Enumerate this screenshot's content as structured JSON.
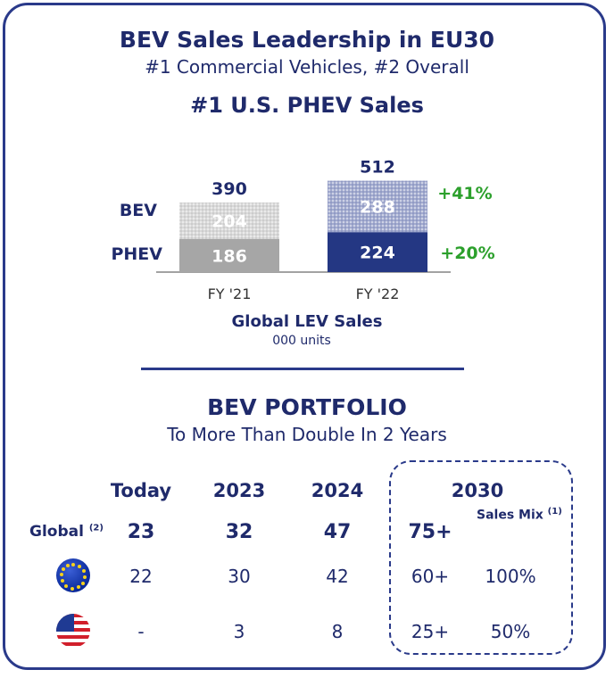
{
  "header": {
    "title": "BEV Sales Leadership in EU30",
    "subtitle": "#1 Commercial Vehicles, #2 Overall",
    "heading": "#1 U.S. PHEV Sales"
  },
  "chart_data": {
    "type": "bar",
    "stacked": true,
    "title": "Global LEV Sales",
    "subtitle": "000 units",
    "categories": [
      "FY '21",
      "FY '22"
    ],
    "totals": [
      390,
      512
    ],
    "series": [
      {
        "name": "PHEV",
        "values": [
          186,
          224
        ],
        "growth": "+20%"
      },
      {
        "name": "BEV",
        "values": [
          204,
          288
        ],
        "growth": "+41%"
      }
    ],
    "colors": {
      "phev_fy21": "#a6a6a6",
      "bev_fy21": "#d6d6d6",
      "phev_fy22": "#243783",
      "bev_fy22": "#9aa3c8",
      "growth": "#2ca02c"
    }
  },
  "portfolio": {
    "title": "BEV PORTFOLIO",
    "subtitle": "To More Than Double In 2 Years",
    "columns": [
      "Today",
      "2023",
      "2024",
      "2030"
    ],
    "sales_mix_label": "Sales Mix",
    "sales_mix_note": "(1)",
    "rows": [
      {
        "label": "Global",
        "note": "(2)",
        "region_icon": "globe",
        "values": [
          "23",
          "32",
          "47",
          "75+"
        ],
        "mix": ""
      },
      {
        "label": "",
        "note": "",
        "region_icon": "eu-flag-icon",
        "values": [
          "22",
          "30",
          "42",
          "60+"
        ],
        "mix": "100%"
      },
      {
        "label": "",
        "note": "",
        "region_icon": "us-flag-icon",
        "values": [
          "-",
          "3",
          "8",
          "25+"
        ],
        "mix": "50%"
      }
    ]
  }
}
